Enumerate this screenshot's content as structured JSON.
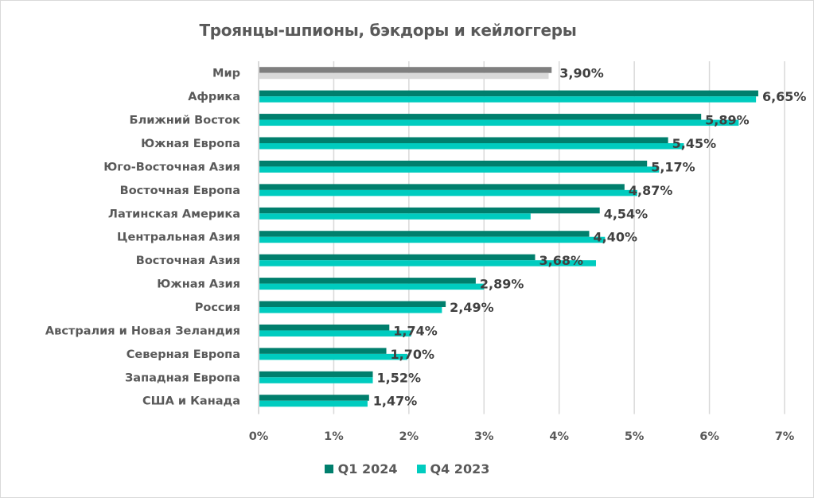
{
  "chart_data": {
    "type": "bar",
    "orientation": "horizontal",
    "title": "Троянцы-шпионы, бэкдоры и кейлоггеры",
    "xlabel": "",
    "ylabel": "",
    "xlim": [
      0,
      7
    ],
    "x_ticks": [
      "0%",
      "1%",
      "2%",
      "3%",
      "4%",
      "5%",
      "6%",
      "7%"
    ],
    "grid": true,
    "legend_position": "bottom",
    "categories": [
      "Мир",
      "Африка",
      "Ближний Восток",
      "Южная Европа",
      "Юго-Восточная Азия",
      "Восточная Европа",
      "Латинская Америка",
      "Центральная Азия",
      "Восточная Азия",
      "Южная Азия",
      "Россия",
      "Австралия и Новая Зеландия",
      "Северная Европа",
      "Западная Европа",
      "США и Канада"
    ],
    "series": [
      {
        "name": "Q1 2024",
        "color": "#007f6d",
        "highlight_color": "#7f7f7f",
        "values": [
          3.9,
          6.65,
          5.89,
          5.45,
          5.17,
          4.87,
          4.54,
          4.4,
          3.68,
          2.89,
          2.49,
          1.74,
          1.7,
          1.52,
          1.47
        ],
        "labels": [
          "3,90%",
          "6,65%",
          "5,89%",
          "5,45%",
          "5,17%",
          "4,87%",
          "4,54%",
          "4,40%",
          "3,68%",
          "2,89%",
          "2,49%",
          "1,74%",
          "1,70%",
          "1,52%",
          "1,47%"
        ]
      },
      {
        "name": "Q4 2023",
        "color": "#00ccbf",
        "highlight_color": "#d9d9d9",
        "values": [
          3.86,
          6.62,
          6.39,
          5.66,
          5.33,
          5.04,
          3.62,
          4.61,
          4.49,
          3.0,
          2.44,
          2.03,
          1.98,
          1.52,
          1.45
        ]
      }
    ]
  },
  "colors": {
    "grid": "#d9d9d9",
    "axis_text": "#595959",
    "data_label": "#404040"
  }
}
